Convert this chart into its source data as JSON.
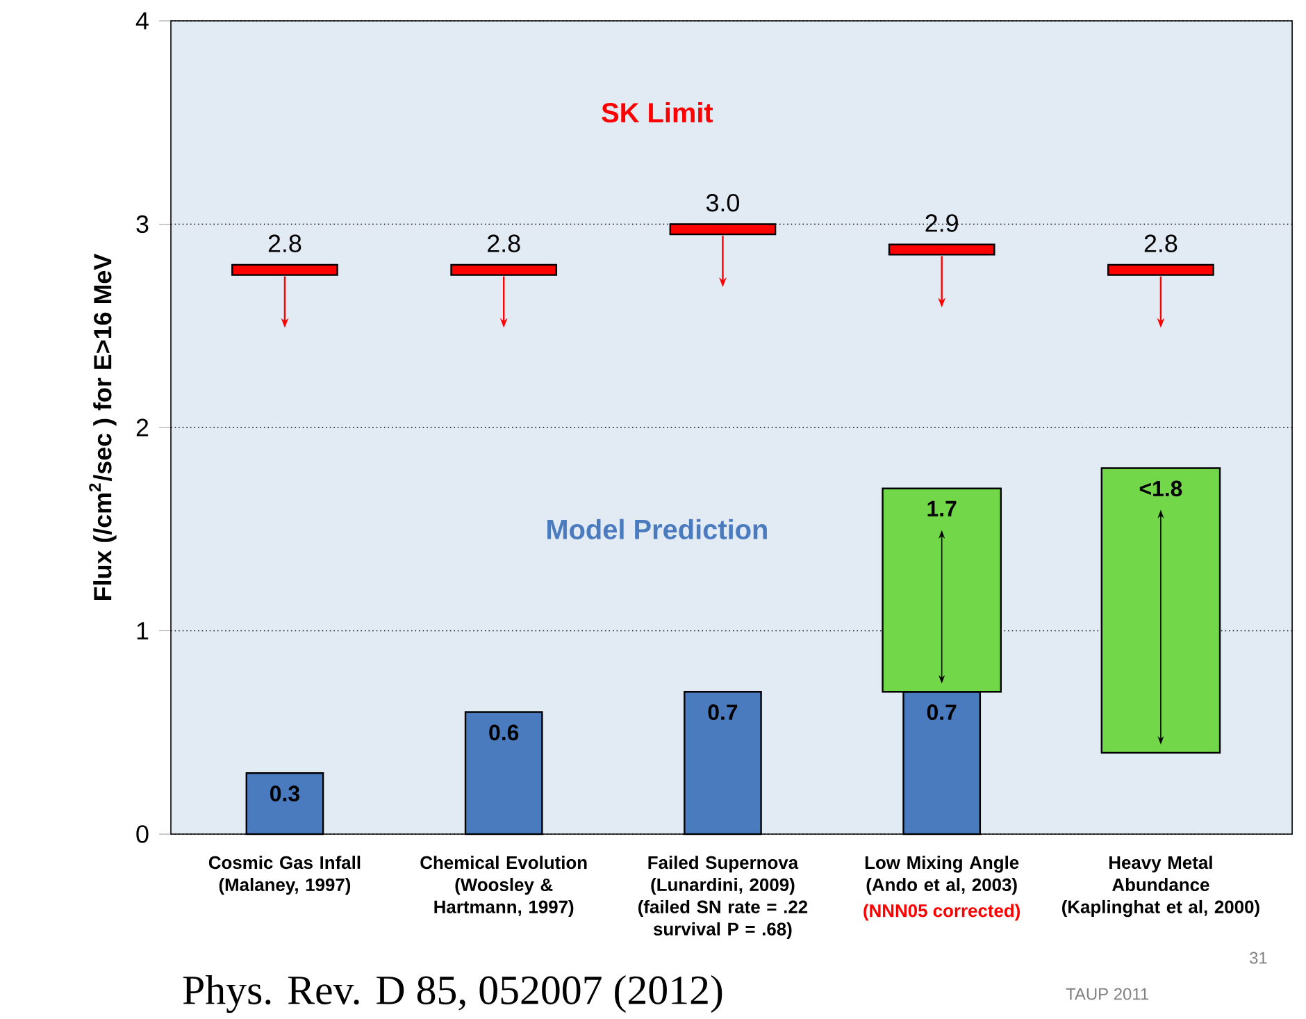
{
  "chart_data": {
    "type": "bar",
    "categories": [
      "Cosmic Gas Infall (Malaney, 1997)",
      "Chemical Evolution (Woosley & Hartmann, 1997)",
      "Failed Supernova (Lunardini, 2009) (failed SN rate = .22 survival P = .68)",
      "Low Mixing Angle (Ando et al, 2003)",
      "Heavy Metal Abundance (Kaplinghat et al, 2000)"
    ],
    "ylabel": "Flux (/cm$^{2}$/sec ) for E>16 MeV",
    "ylim": [
      0,
      4
    ],
    "yticks": [
      0,
      1,
      2,
      3,
      4
    ],
    "grid": "y",
    "series": [
      {
        "name": "SK Limit",
        "color": "#ff0000",
        "base": [
          2.75,
          2.75,
          2.95,
          2.85,
          2.75
        ],
        "values": [
          0.05,
          0.05,
          0.05,
          0.05,
          0.05
        ],
        "value_labels": [
          "2.8",
          "2.8",
          "3.0",
          "2.9",
          "2.8"
        ]
      },
      {
        "name": "Model Prediction",
        "color": "#4a7bbf",
        "values": [
          0.3,
          0.6,
          0.7,
          0.7,
          null
        ],
        "value_labels": [
          "0.3",
          "0.6",
          "0.7",
          "0.7",
          null
        ]
      },
      {
        "color": "#72d84a",
        "base": [
          null,
          null,
          null,
          0.7,
          0.4
        ],
        "values": [
          null,
          null,
          null,
          1.0,
          1.4
        ],
        "value_labels": [
          null,
          null,
          null,
          "1.7",
          "<1.8"
        ]
      }
    ],
    "annotations": [
      "(NNN05 corrected)",
      "Phys. Rev. D 85, 052007 (2012)",
      "TAUP 2011",
      "31"
    ]
  }
}
